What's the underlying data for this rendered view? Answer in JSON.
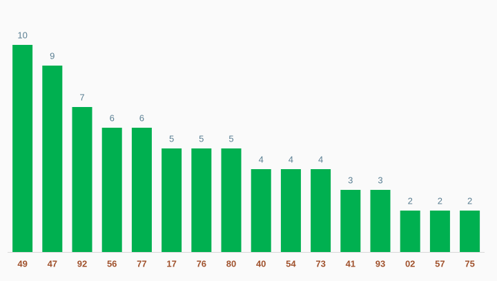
{
  "chart_data": {
    "type": "bar",
    "categories": [
      "49",
      "47",
      "92",
      "56",
      "77",
      "17",
      "76",
      "80",
      "40",
      "54",
      "73",
      "41",
      "93",
      "02",
      "57",
      "75"
    ],
    "values": [
      10,
      9,
      7,
      6,
      6,
      5,
      5,
      5,
      4,
      4,
      4,
      3,
      3,
      2,
      2,
      2
    ],
    "color": "#00b050"
  }
}
